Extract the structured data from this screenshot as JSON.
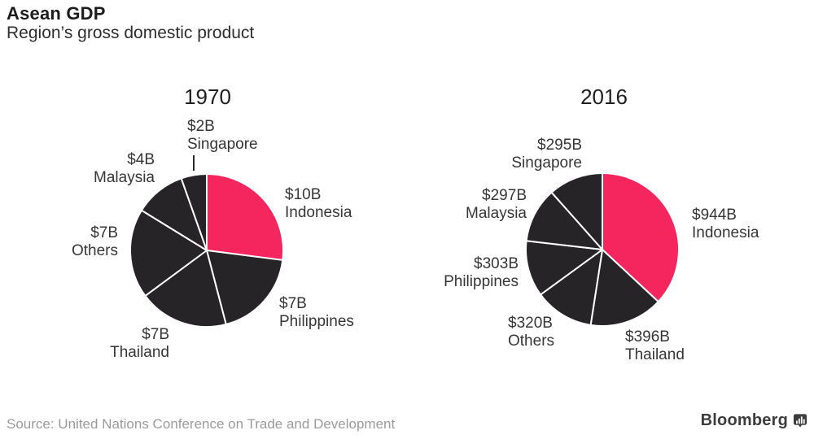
{
  "header": {
    "title": "Asean GDP",
    "subtitle": "Region’s gross domestic product"
  },
  "footer": {
    "source": "Source: United Nations Conference on Trade and Development",
    "brand": "Bloomberg"
  },
  "colors": {
    "highlight": "#F5265E",
    "slice": "#262426",
    "separator": "#ffffff",
    "label_text": "#363636",
    "source_text": "#9b9b9b"
  },
  "chart_data": [
    {
      "type": "pie",
      "title": "1970",
      "unit": "USD billions",
      "total": 37,
      "start": "12 o'clock, clockwise",
      "slices": [
        {
          "label": "Indonesia",
          "value": 10,
          "display": "$10B",
          "highlight": true
        },
        {
          "label": "Philippines",
          "value": 7,
          "display": "$7B",
          "highlight": false
        },
        {
          "label": "Thailand",
          "value": 7,
          "display": "$7B",
          "highlight": false
        },
        {
          "label": "Others",
          "value": 7,
          "display": "$7B",
          "highlight": false
        },
        {
          "label": "Malaysia",
          "value": 4,
          "display": "$4B",
          "highlight": false
        },
        {
          "label": "Singapore",
          "value": 2,
          "display": "$2B",
          "highlight": false
        }
      ]
    },
    {
      "type": "pie",
      "title": "2016",
      "unit": "USD billions",
      "total": 2555,
      "start": "12 o'clock, clockwise",
      "slices": [
        {
          "label": "Indonesia",
          "value": 944,
          "display": "$944B",
          "highlight": true
        },
        {
          "label": "Thailand",
          "value": 396,
          "display": "$396B",
          "highlight": false
        },
        {
          "label": "Others",
          "value": 320,
          "display": "$320B",
          "highlight": false
        },
        {
          "label": "Philippines",
          "value": 303,
          "display": "$303B",
          "highlight": false
        },
        {
          "label": "Malaysia",
          "value": 297,
          "display": "$297B",
          "highlight": false
        },
        {
          "label": "Singapore",
          "value": 295,
          "display": "$295B",
          "highlight": false
        }
      ]
    }
  ]
}
